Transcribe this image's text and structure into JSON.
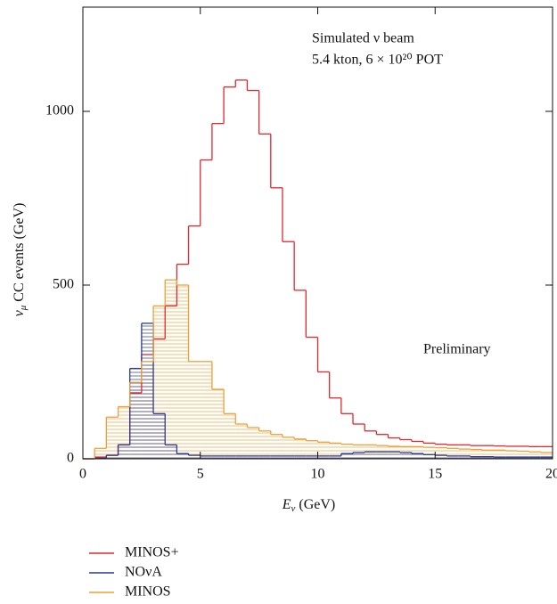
{
  "chart_data": {
    "type": "histogram",
    "annotations": [
      "Simulated ν beam",
      "5.4 kton, 6 × 10²⁰ POT",
      "Preliminary"
    ],
    "xlabel": {
      "symbol": "E",
      "subscript": "ν",
      "text": " (GeV)"
    },
    "ylabel": {
      "symbol": "ν",
      "subscript": "μ",
      "text": " CC events (GeV)"
    },
    "bins": [
      0,
      0.5,
      1,
      1.5,
      2,
      2.5,
      3,
      3.5,
      4,
      4.5,
      5,
      5.5,
      6,
      6.5,
      7,
      7.5,
      8,
      8.5,
      9,
      9.5,
      10,
      10.5,
      11,
      11.5,
      12,
      12.5,
      13,
      13.5,
      14,
      14.5,
      15,
      15.5,
      16,
      16.5,
      17,
      17.5,
      18,
      18.5,
      19,
      19.5,
      20
    ],
    "series": [
      {
        "name": "MINOS+",
        "color": "#e0282e",
        "hatch": false,
        "values": [
          0,
          5,
          10,
          40,
          190,
          300,
          345,
          440,
          560,
          670,
          860,
          965,
          1070,
          1090,
          1060,
          935,
          780,
          625,
          485,
          350,
          250,
          175,
          130,
          100,
          80,
          70,
          60,
          55,
          50,
          45,
          42,
          40,
          40,
          38,
          38,
          37,
          36,
          36,
          35,
          35
        ]
      },
      {
        "name": "NOνA",
        "color": "#2a3a8f",
        "hatch": true,
        "values": [
          0,
          2,
          10,
          40,
          260,
          390,
          130,
          40,
          15,
          10,
          8,
          8,
          8,
          8,
          8,
          8,
          8,
          8,
          8,
          8,
          8,
          8,
          15,
          18,
          20,
          20,
          20,
          18,
          15,
          12,
          10,
          8,
          8,
          6,
          6,
          5,
          5,
          5,
          5,
          5
        ]
      },
      {
        "name": "MINOS",
        "color": "#eba13a",
        "hatch": true,
        "values": [
          0,
          30,
          120,
          150,
          220,
          280,
          440,
          515,
          500,
          280,
          280,
          200,
          130,
          100,
          90,
          80,
          70,
          62,
          57,
          52,
          48,
          45,
          42,
          40,
          40,
          38,
          36,
          35,
          35,
          33,
          32,
          30,
          28,
          27,
          25,
          25,
          23,
          22,
          20,
          18
        ]
      }
    ],
    "xlim": [
      0,
      20
    ],
    "xticks": [
      0,
      5,
      10,
      15,
      20
    ],
    "ylim": [
      0,
      1300
    ],
    "yticks": [
      0,
      500,
      1000
    ]
  }
}
